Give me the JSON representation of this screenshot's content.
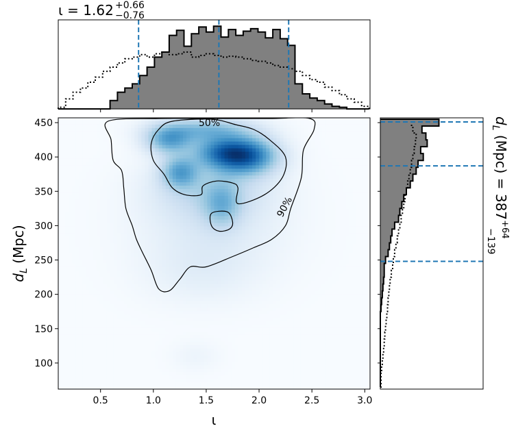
{
  "chart_data": {
    "type": "corner",
    "top_title": {
      "symbol": "ι",
      "median": "1.62",
      "plus": "+0.66",
      "minus": "−0.76"
    },
    "right_title": {
      "label": "d",
      "sub": "L",
      "unit": " (Mpc) = ",
      "median": "387",
      "plus": "+64",
      "minus": "−139"
    },
    "xlabel": "ι",
    "ylabel": {
      "main": "d",
      "sub": "L",
      "unit": " (Mpc)"
    },
    "xlim": [
      0.1,
      3.05
    ],
    "ylim": [
      62,
      457
    ],
    "xticks": [
      0.5,
      1.0,
      1.5,
      2.0,
      2.5,
      3.0
    ],
    "xtick_labels": [
      "0.5",
      "1.0",
      "1.5",
      "2.0",
      "2.5",
      "3.0"
    ],
    "yticks": [
      100,
      150,
      200,
      250,
      300,
      350,
      400,
      450
    ],
    "ytick_labels": [
      "100",
      "150",
      "200",
      "250",
      "300",
      "350",
      "400",
      "450"
    ],
    "quantile_lines": {
      "iota": [
        0.86,
        1.62,
        2.28
      ],
      "dL": [
        248,
        387,
        451
      ]
    },
    "contour_labels": [
      "50%",
      "90%"
    ],
    "hist_iota": {
      "bins": [
        0.1,
        0.17,
        0.24,
        0.31,
        0.38,
        0.45,
        0.52,
        0.59,
        0.66,
        0.73,
        0.8,
        0.87,
        0.94,
        1.01,
        1.08,
        1.15,
        1.22,
        1.29,
        1.36,
        1.43,
        1.5,
        1.57,
        1.64,
        1.71,
        1.78,
        1.85,
        1.92,
        1.99,
        2.06,
        2.13,
        2.2,
        2.27,
        2.34,
        2.41,
        2.48,
        2.55,
        2.62,
        2.69,
        2.76,
        2.83,
        2.9,
        2.97,
        3.04
      ],
      "posterior": [
        0,
        0,
        0,
        0,
        0,
        0,
        0,
        0.1,
        0.2,
        0.25,
        0.3,
        0.4,
        0.5,
        0.62,
        0.68,
        0.88,
        0.94,
        0.75,
        0.9,
        0.98,
        0.92,
        0.99,
        0.86,
        0.95,
        0.88,
        0.93,
        0.96,
        0.92,
        0.85,
        0.95,
        0.84,
        0.76,
        0.3,
        0.18,
        0.13,
        0.1,
        0.06,
        0.03,
        0.02,
        0,
        0,
        0
      ],
      "prior": [
        0.02,
        0.12,
        0.2,
        0.25,
        0.32,
        0.38,
        0.45,
        0.5,
        0.55,
        0.6,
        0.62,
        0.65,
        0.62,
        0.66,
        0.68,
        0.65,
        0.66,
        0.68,
        0.62,
        0.64,
        0.66,
        0.64,
        0.62,
        0.63,
        0.62,
        0.6,
        0.58,
        0.57,
        0.55,
        0.52,
        0.5,
        0.48,
        0.45,
        0.4,
        0.35,
        0.32,
        0.26,
        0.22,
        0.17,
        0.12,
        0.08,
        0.03
      ]
    },
    "hist_dL": {
      "bins": [
        65,
        75,
        85,
        95,
        105,
        115,
        125,
        135,
        145,
        155,
        165,
        175,
        185,
        195,
        205,
        215,
        225,
        235,
        245,
        255,
        265,
        275,
        285,
        295,
        305,
        315,
        325,
        335,
        345,
        355,
        365,
        375,
        385,
        395,
        405,
        415,
        425,
        435,
        445,
        455
      ],
      "posterior": [
        0,
        0,
        0,
        0,
        0,
        0,
        0,
        0,
        0,
        0,
        0,
        0.01,
        0.02,
        0.03,
        0.04,
        0.05,
        0.06,
        0.06,
        0.08,
        0.12,
        0.14,
        0.16,
        0.18,
        0.22,
        0.28,
        0.3,
        0.33,
        0.36,
        0.4,
        0.46,
        0.5,
        0.55,
        0.58,
        0.66,
        0.62,
        0.72,
        0.7,
        0.64,
        0.9
      ],
      "prior": [
        0.01,
        0.01,
        0.02,
        0.03,
        0.04,
        0.05,
        0.06,
        0.07,
        0.08,
        0.09,
        0.1,
        0.11,
        0.12,
        0.13,
        0.14,
        0.15,
        0.17,
        0.19,
        0.2,
        0.22,
        0.24,
        0.26,
        0.28,
        0.3,
        0.32,
        0.34,
        0.36,
        0.38,
        0.4,
        0.42,
        0.44,
        0.46,
        0.48,
        0.5,
        0.52,
        0.54,
        0.55,
        0.5,
        0.48
      ]
    },
    "density_peaks": [
      {
        "x": 1.87,
        "y": 402,
        "sx": 0.2,
        "sy": 18,
        "w": 1.0
      },
      {
        "x": 1.62,
        "y": 408,
        "sx": 0.18,
        "sy": 16,
        "w": 0.55
      },
      {
        "x": 1.25,
        "y": 378,
        "sx": 0.12,
        "sy": 16,
        "w": 0.55
      },
      {
        "x": 1.15,
        "y": 425,
        "sx": 0.15,
        "sy": 14,
        "w": 0.6
      },
      {
        "x": 1.5,
        "y": 440,
        "sx": 0.3,
        "sy": 12,
        "w": 0.45
      },
      {
        "x": 1.65,
        "y": 330,
        "sx": 0.12,
        "sy": 22,
        "w": 0.35
      },
      {
        "x": 1.55,
        "y": 355,
        "sx": 0.35,
        "sy": 30,
        "w": 0.25
      },
      {
        "x": 1.55,
        "y": 300,
        "sx": 0.45,
        "sy": 50,
        "w": 0.12
      },
      {
        "x": 1.45,
        "y": 230,
        "sx": 0.35,
        "sy": 30,
        "w": 0.06
      },
      {
        "x": 1.4,
        "y": 110,
        "sx": 0.15,
        "sy": 15,
        "w": 0.04
      }
    ],
    "contour_50": [
      [
        1.18,
        452
      ],
      [
        1.55,
        455
      ],
      [
        1.78,
        447
      ],
      [
        1.95,
        440
      ],
      [
        2.1,
        425
      ],
      [
        2.25,
        400
      ],
      [
        2.22,
        370
      ],
      [
        2.05,
        345
      ],
      [
        1.8,
        332
      ],
      [
        1.8,
        355
      ],
      [
        1.75,
        362
      ],
      [
        1.6,
        365
      ],
      [
        1.47,
        358
      ],
      [
        1.45,
        345
      ],
      [
        1.3,
        345
      ],
      [
        1.18,
        355
      ],
      [
        1.1,
        375
      ],
      [
        1.0,
        395
      ],
      [
        0.98,
        420
      ],
      [
        1.05,
        440
      ]
    ],
    "contour_90": [
      [
        0.57,
        452
      ],
      [
        1.05,
        456
      ],
      [
        1.6,
        456
      ],
      [
        2.1,
        456
      ],
      [
        2.48,
        456
      ],
      [
        2.52,
        440
      ],
      [
        2.42,
        410
      ],
      [
        2.4,
        370
      ],
      [
        2.3,
        325
      ],
      [
        2.25,
        300
      ],
      [
        2.12,
        280
      ],
      [
        1.95,
        268
      ],
      [
        1.75,
        255
      ],
      [
        1.5,
        240
      ],
      [
        1.35,
        240
      ],
      [
        1.25,
        222
      ],
      [
        1.15,
        205
      ],
      [
        1.05,
        208
      ],
      [
        0.98,
        235
      ],
      [
        0.9,
        260
      ],
      [
        0.84,
        280
      ],
      [
        0.8,
        300
      ],
      [
        0.74,
        325
      ],
      [
        0.72,
        355
      ],
      [
        0.7,
        380
      ],
      [
        0.62,
        395
      ],
      [
        0.6,
        425
      ]
    ],
    "contour_90_island": [
      [
        1.55,
        318
      ],
      [
        1.7,
        320
      ],
      [
        1.75,
        305
      ],
      [
        1.72,
        295
      ],
      [
        1.62,
        292
      ],
      [
        1.55,
        300
      ]
    ]
  }
}
